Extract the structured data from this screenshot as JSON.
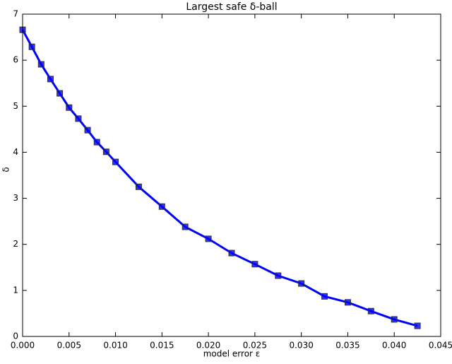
{
  "chart_data": {
    "type": "line",
    "title": "Largest safe δ-ball",
    "xlabel": "model error ε",
    "ylabel": "δ",
    "x": [
      0,
      0.001,
      0.002,
      0.003,
      0.004,
      0.005,
      0.006,
      0.007,
      0.008,
      0.009,
      0.01,
      0.0125,
      0.015,
      0.0175,
      0.02,
      0.0225,
      0.025,
      0.0275,
      0.03,
      0.0325,
      0.035,
      0.0375,
      0.04,
      0.0425
    ],
    "values": [
      6.66,
      6.29,
      5.91,
      5.59,
      5.28,
      4.97,
      4.73,
      4.48,
      4.22,
      4.01,
      3.79,
      3.25,
      2.82,
      2.38,
      2.12,
      1.81,
      1.57,
      1.32,
      1.15,
      0.87,
      0.74,
      0.55,
      0.37,
      0.23
    ],
    "color": "#0000ff",
    "xlim": [
      0,
      0.045
    ],
    "xticks": [
      {
        "value": 0,
        "label": "0.000"
      },
      {
        "value": 0.005,
        "label": "0.005"
      },
      {
        "value": 0.01,
        "label": "0.010"
      },
      {
        "value": 0.015,
        "label": "0.015"
      },
      {
        "value": 0.02,
        "label": "0.020"
      },
      {
        "value": 0.025,
        "label": "0.025"
      },
      {
        "value": 0.03,
        "label": "0.030"
      },
      {
        "value": 0.035,
        "label": "0.035"
      },
      {
        "value": 0.04,
        "label": "0.040"
      },
      {
        "value": 0.045,
        "label": "0.045"
      }
    ],
    "ylim": [
      0,
      7
    ],
    "yticks": [
      0,
      1,
      2,
      3,
      4,
      5,
      6,
      7
    ],
    "grid": false
  }
}
